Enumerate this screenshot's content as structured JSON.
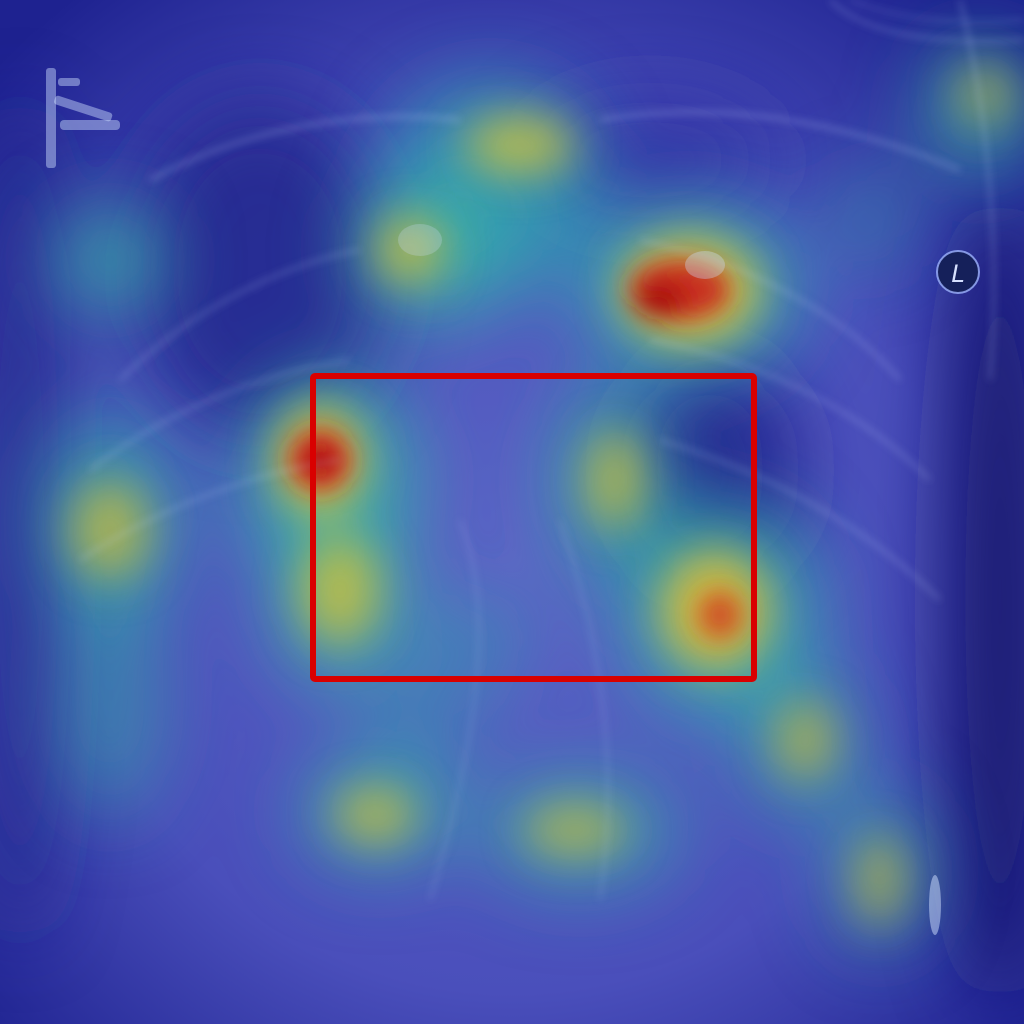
{
  "image": {
    "kind": "chest radiograph with attention heatmap overlay",
    "laterality_marker": "L",
    "heatmap_colormap": "jet",
    "bounding_box_color": "#d90000"
  },
  "colors": {
    "base_low": "#3b3fb0",
    "base_mid": "#5a5fc4",
    "cyan": "#37b8b0",
    "yellow": "#d9c43a",
    "red": "#c81c12"
  }
}
